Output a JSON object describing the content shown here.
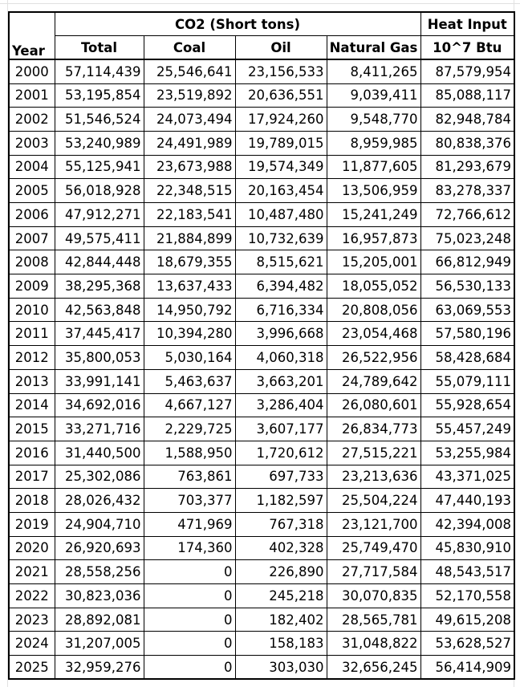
{
  "header": {
    "group_co2": "CO2 (Short tons)",
    "group_heat": "Heat Input",
    "year": "Year",
    "total": "Total",
    "coal": "Coal",
    "oil": "Oil",
    "natural_gas": "Natural Gas",
    "heat_unit": "10^7 Btu"
  },
  "rows": [
    {
      "year": "2000",
      "total": "57,114,439",
      "coal": "25,546,641",
      "oil": "23,156,533",
      "gas": "8,411,265",
      "heat": "87,579,954"
    },
    {
      "year": "2001",
      "total": "53,195,854",
      "coal": "23,519,892",
      "oil": "20,636,551",
      "gas": "9,039,411",
      "heat": "85,088,117"
    },
    {
      "year": "2002",
      "total": "51,546,524",
      "coal": "24,073,494",
      "oil": "17,924,260",
      "gas": "9,548,770",
      "heat": "82,948,784"
    },
    {
      "year": "2003",
      "total": "53,240,989",
      "coal": "24,491,989",
      "oil": "19,789,015",
      "gas": "8,959,985",
      "heat": "80,838,376"
    },
    {
      "year": "2004",
      "total": "55,125,941",
      "coal": "23,673,988",
      "oil": "19,574,349",
      "gas": "11,877,605",
      "heat": "81,293,679"
    },
    {
      "year": "2005",
      "total": "56,018,928",
      "coal": "22,348,515",
      "oil": "20,163,454",
      "gas": "13,506,959",
      "heat": "83,278,337"
    },
    {
      "year": "2006",
      "total": "47,912,271",
      "coal": "22,183,541",
      "oil": "10,487,480",
      "gas": "15,241,249",
      "heat": "72,766,612"
    },
    {
      "year": "2007",
      "total": "49,575,411",
      "coal": "21,884,899",
      "oil": "10,732,639",
      "gas": "16,957,873",
      "heat": "75,023,248"
    },
    {
      "year": "2008",
      "total": "42,844,448",
      "coal": "18,679,355",
      "oil": "8,515,621",
      "gas": "15,205,001",
      "heat": "66,812,949"
    },
    {
      "year": "2009",
      "total": "38,295,368",
      "coal": "13,637,433",
      "oil": "6,394,482",
      "gas": "18,055,052",
      "heat": "56,530,133"
    },
    {
      "year": "2010",
      "total": "42,563,848",
      "coal": "14,950,792",
      "oil": "6,716,334",
      "gas": "20,808,056",
      "heat": "63,069,553"
    },
    {
      "year": "2011",
      "total": "37,445,417",
      "coal": "10,394,280",
      "oil": "3,996,668",
      "gas": "23,054,468",
      "heat": "57,580,196"
    },
    {
      "year": "2012",
      "total": "35,800,053",
      "coal": "5,030,164",
      "oil": "4,060,318",
      "gas": "26,522,956",
      "heat": "58,428,684"
    },
    {
      "year": "2013",
      "total": "33,991,141",
      "coal": "5,463,637",
      "oil": "3,663,201",
      "gas": "24,789,642",
      "heat": "55,079,111"
    },
    {
      "year": "2014",
      "total": "34,692,016",
      "coal": "4,667,127",
      "oil": "3,286,404",
      "gas": "26,080,601",
      "heat": "55,928,654"
    },
    {
      "year": "2015",
      "total": "33,271,716",
      "coal": "2,229,725",
      "oil": "3,607,177",
      "gas": "26,834,773",
      "heat": "55,457,249"
    },
    {
      "year": "2016",
      "total": "31,440,500",
      "coal": "1,588,950",
      "oil": "1,720,612",
      "gas": "27,515,221",
      "heat": "53,255,984"
    },
    {
      "year": "2017",
      "total": "25,302,086",
      "coal": "763,861",
      "oil": "697,733",
      "gas": "23,213,636",
      "heat": "43,371,025"
    },
    {
      "year": "2018",
      "total": "28,026,432",
      "coal": "703,377",
      "oil": "1,182,597",
      "gas": "25,504,224",
      "heat": "47,440,193"
    },
    {
      "year": "2019",
      "total": "24,904,710",
      "coal": "471,969",
      "oil": "767,318",
      "gas": "23,121,700",
      "heat": "42,394,008"
    },
    {
      "year": "2020",
      "total": "26,920,693",
      "coal": "174,360",
      "oil": "402,328",
      "gas": "25,749,470",
      "heat": "45,830,910"
    },
    {
      "year": "2021",
      "total": "28,558,256",
      "coal": "0",
      "oil": "226,890",
      "gas": "27,717,584",
      "heat": "48,543,517"
    },
    {
      "year": "2022",
      "total": "30,823,036",
      "coal": "0",
      "oil": "245,218",
      "gas": "30,070,835",
      "heat": "52,170,558"
    },
    {
      "year": "2023",
      "total": "28,892,081",
      "coal": "0",
      "oil": "182,402",
      "gas": "28,565,781",
      "heat": "49,615,208"
    },
    {
      "year": "2024",
      "total": "31,207,005",
      "coal": "0",
      "oil": "158,183",
      "gas": "31,048,822",
      "heat": "53,628,527"
    },
    {
      "year": "2025",
      "total": "32,959,276",
      "coal": "0",
      "oil": "303,030",
      "gas": "32,656,245",
      "heat": "56,414,909"
    }
  ]
}
